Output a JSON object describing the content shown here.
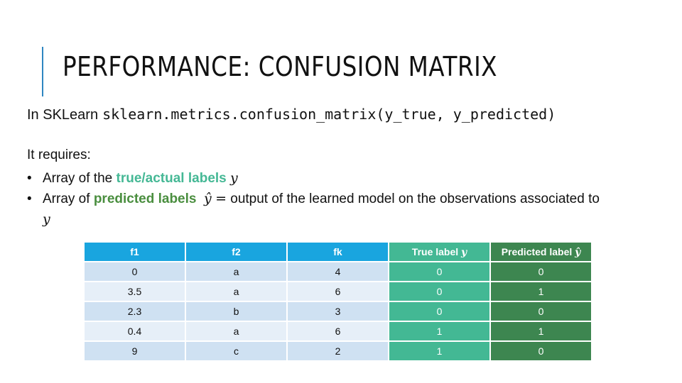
{
  "slide": {
    "title": "PERFORMANCE: CONFUSION MATRIX",
    "intro_prefix": "In SKLearn",
    "intro_code": "sklearn.metrics.confusion_matrix(y_true, y_predicted)",
    "requires": "It requires:",
    "bullet1_prefix": "Array of the ",
    "bullet1_highlight": "true/actual labels",
    "bullet1_var": "y",
    "bullet2_prefix": "Array of ",
    "bullet2_highlight": "predicted labels",
    "bullet2_var": "ŷ",
    "bullet2_eq": "=",
    "bullet2_rest": " output of the learned model on the observations associated to ",
    "bullet2_var2": "y"
  },
  "table": {
    "headers": {
      "f1": "f1",
      "f2": "f2",
      "fk": "fk",
      "true_label": "True label",
      "true_var": "y",
      "pred_label": "Predicted label",
      "pred_var": "ŷ"
    },
    "rows": [
      {
        "f1": "0",
        "f2": "a",
        "fk": "4",
        "true": "0",
        "pred": "0"
      },
      {
        "f1": "3.5",
        "f2": "a",
        "fk": "6",
        "true": "0",
        "pred": "1"
      },
      {
        "f1": "2.3",
        "f2": "b",
        "fk": "3",
        "true": "0",
        "pred": "0"
      },
      {
        "f1": "0.4",
        "f2": "a",
        "fk": "6",
        "true": "1",
        "pred": "1"
      },
      {
        "f1": "9",
        "f2": "c",
        "fk": "2",
        "true": "1",
        "pred": "0"
      }
    ]
  },
  "colors": {
    "title_bar": "#2e86c1",
    "feature_header": "#19a5df",
    "true_label": "#43b894",
    "predicted_label": "#3d8650"
  }
}
